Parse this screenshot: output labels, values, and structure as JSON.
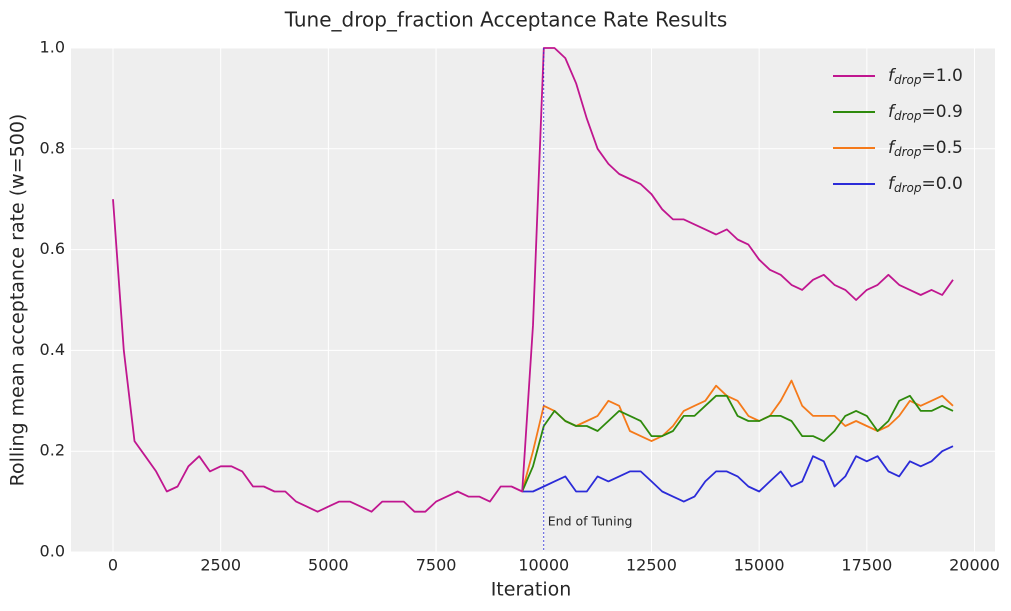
{
  "chart_data": {
    "type": "line",
    "title": "Tune_drop_fraction Acceptance Rate Results",
    "xlabel": "Iteration",
    "ylabel": "Rolling mean acceptance rate (w=500)",
    "x": [
      0,
      250,
      500,
      750,
      1000,
      1250,
      1500,
      1750,
      2000,
      2250,
      2500,
      2750,
      3000,
      3250,
      3500,
      3750,
      4000,
      4250,
      4500,
      4750,
      5000,
      5250,
      5500,
      5750,
      6000,
      6250,
      6500,
      6750,
      7000,
      7250,
      7500,
      7750,
      8000,
      8250,
      8500,
      8750,
      9000,
      9250,
      9500,
      9750,
      10000,
      10250,
      10500,
      10750,
      11000,
      11250,
      11500,
      11750,
      12000,
      12250,
      12500,
      12750,
      13000,
      13250,
      13500,
      13750,
      14000,
      14250,
      14500,
      14750,
      15000,
      15250,
      15500,
      15750,
      16000,
      16250,
      16500,
      16750,
      17000,
      17250,
      17500,
      17750,
      18000,
      18250,
      18500,
      18750,
      19000,
      19250,
      19500
    ],
    "series": [
      {
        "name": [
          "f",
          "drop",
          "=1.0"
        ],
        "color": "#c0168f",
        "values": [
          0.7,
          0.4,
          0.22,
          0.19,
          0.16,
          0.12,
          0.13,
          0.17,
          0.19,
          0.16,
          0.17,
          0.17,
          0.16,
          0.13,
          0.13,
          0.12,
          0.12,
          0.1,
          0.09,
          0.08,
          0.09,
          0.1,
          0.1,
          0.09,
          0.08,
          0.1,
          0.1,
          0.1,
          0.08,
          0.08,
          0.1,
          0.11,
          0.12,
          0.11,
          0.11,
          0.1,
          0.13,
          0.13,
          0.12,
          0.45,
          1.0,
          1.0,
          0.98,
          0.93,
          0.86,
          0.8,
          0.77,
          0.75,
          0.74,
          0.73,
          0.71,
          0.68,
          0.66,
          0.66,
          0.65,
          0.64,
          0.63,
          0.64,
          0.62,
          0.61,
          0.58,
          0.56,
          0.55,
          0.53,
          0.52,
          0.54,
          0.55,
          0.53,
          0.52,
          0.5,
          0.52,
          0.53,
          0.55,
          0.53,
          0.52,
          0.51,
          0.52,
          0.51,
          0.54
        ]
      },
      {
        "name": [
          "f",
          "drop",
          "=0.9"
        ],
        "color": "#2e8a0c",
        "values": [
          null,
          null,
          null,
          null,
          null,
          null,
          null,
          null,
          null,
          null,
          null,
          null,
          null,
          null,
          null,
          null,
          null,
          null,
          null,
          null,
          null,
          null,
          null,
          null,
          null,
          null,
          null,
          null,
          null,
          null,
          null,
          null,
          null,
          null,
          null,
          null,
          null,
          null,
          0.12,
          0.17,
          0.25,
          0.28,
          0.26,
          0.25,
          0.25,
          0.24,
          0.26,
          0.28,
          0.27,
          0.26,
          0.23,
          0.23,
          0.24,
          0.27,
          0.27,
          0.29,
          0.31,
          0.31,
          0.27,
          0.26,
          0.26,
          0.27,
          0.27,
          0.26,
          0.23,
          0.23,
          0.22,
          0.24,
          0.27,
          0.28,
          0.27,
          0.24,
          0.26,
          0.3,
          0.31,
          0.28,
          0.28,
          0.29,
          0.28
        ]
      },
      {
        "name": [
          "f",
          "drop",
          "=0.5"
        ],
        "color": "#f57a1a",
        "values": [
          null,
          null,
          null,
          null,
          null,
          null,
          null,
          null,
          null,
          null,
          null,
          null,
          null,
          null,
          null,
          null,
          null,
          null,
          null,
          null,
          null,
          null,
          null,
          null,
          null,
          null,
          null,
          null,
          null,
          null,
          null,
          null,
          null,
          null,
          null,
          null,
          null,
          null,
          0.12,
          0.2,
          0.29,
          0.28,
          0.26,
          0.25,
          0.26,
          0.27,
          0.3,
          0.29,
          0.24,
          0.23,
          0.22,
          0.23,
          0.25,
          0.28,
          0.29,
          0.3,
          0.33,
          0.31,
          0.3,
          0.27,
          0.26,
          0.27,
          0.3,
          0.34,
          0.29,
          0.27,
          0.27,
          0.27,
          0.25,
          0.26,
          0.25,
          0.24,
          0.25,
          0.27,
          0.3,
          0.29,
          0.3,
          0.31,
          0.29
        ]
      },
      {
        "name": [
          "f",
          "drop",
          "=0.0"
        ],
        "color": "#2b2bd8",
        "values": [
          null,
          null,
          null,
          null,
          null,
          null,
          null,
          null,
          null,
          null,
          null,
          null,
          null,
          null,
          null,
          null,
          null,
          null,
          null,
          null,
          null,
          null,
          null,
          null,
          null,
          null,
          null,
          null,
          null,
          null,
          null,
          null,
          null,
          null,
          null,
          null,
          null,
          null,
          0.12,
          0.12,
          0.13,
          0.14,
          0.15,
          0.12,
          0.12,
          0.15,
          0.14,
          0.15,
          0.16,
          0.16,
          0.14,
          0.12,
          0.11,
          0.1,
          0.11,
          0.14,
          0.16,
          0.16,
          0.15,
          0.13,
          0.12,
          0.14,
          0.16,
          0.13,
          0.14,
          0.19,
          0.18,
          0.13,
          0.15,
          0.19,
          0.18,
          0.19,
          0.16,
          0.15,
          0.18,
          0.17,
          0.18,
          0.2,
          0.21
        ]
      }
    ],
    "annotation": {
      "text": "End of Tuning",
      "x": 10000
    },
    "xlim": [
      -975,
      20475
    ],
    "xticks": [
      0,
      2500,
      5000,
      7500,
      10000,
      12500,
      15000,
      17500,
      20000
    ],
    "ylim": [
      0,
      1
    ],
    "yticks": [
      {
        "value": 0,
        "label": "0.0"
      },
      0.2,
      0.4,
      0.6,
      0.8,
      {
        "value": 1,
        "label": "1.0"
      }
    ],
    "grid": true,
    "legend": "upper right"
  }
}
